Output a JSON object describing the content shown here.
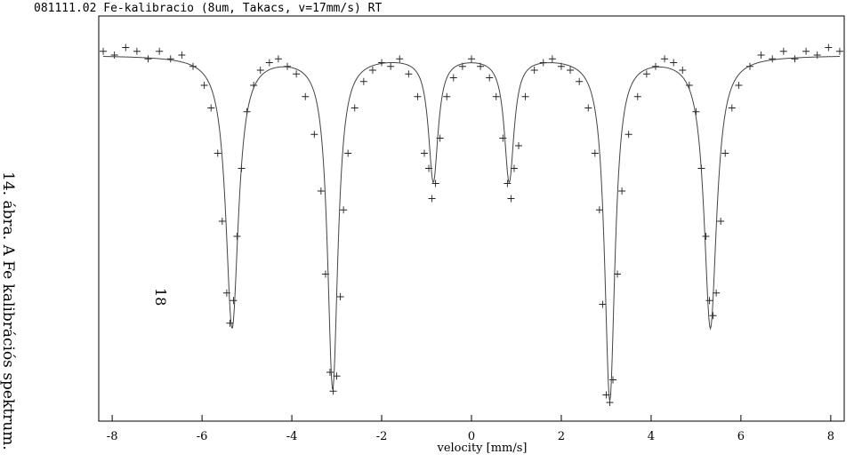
{
  "page": {
    "header": "081111.02  Fe-kalibracio (8um, Takacs, v=17mm/s)  RT",
    "caption": "14. ábra. A Fe kalibrációs spektrum.",
    "page_number": "18"
  },
  "chart_data": {
    "type": "scatter",
    "title": "081111.02  Fe-kalibracio (8um, Takacs, v=17mm/s)  RT",
    "xlabel": "velocity  [mm/s]",
    "ylabel": "",
    "xlim": [
      -8.3,
      8.3
    ],
    "ylim": [
      0.0,
      1.0
    ],
    "x_ticks": [
      -8,
      -6,
      -4,
      -2,
      0,
      2,
      4,
      6,
      8
    ],
    "x_tick_labels": [
      "-8",
      "-6",
      "-4",
      "-2",
      "0",
      "2",
      "4",
      "6",
      "8"
    ],
    "y_ticks_visible": false,
    "grid": false,
    "legend": "none",
    "series": [
      {
        "kind": "points",
        "marker": "+",
        "x": [
          -8.2,
          -7.95,
          -7.7,
          -7.45,
          -7.2,
          -6.95,
          -6.7,
          -6.45,
          -6.2,
          -5.95,
          -5.8,
          -5.65,
          -5.55,
          -5.45,
          -5.38,
          -5.3,
          -5.22,
          -5.12,
          -5.0,
          -4.85,
          -4.7,
          -4.5,
          -4.3,
          -4.1,
          -3.9,
          -3.7,
          -3.5,
          -3.35,
          -3.25,
          -3.15,
          -3.08,
          -3.0,
          -2.92,
          -2.85,
          -2.75,
          -2.6,
          -2.4,
          -2.2,
          -2.0,
          -1.8,
          -1.6,
          -1.4,
          -1.2,
          -1.05,
          -0.95,
          -0.88,
          -0.8,
          -0.7,
          -0.55,
          -0.4,
          -0.2,
          0.0,
          0.2,
          0.4,
          0.55,
          0.7,
          0.8,
          0.88,
          0.95,
          1.05,
          1.2,
          1.4,
          1.6,
          1.8,
          2.0,
          2.2,
          2.4,
          2.6,
          2.75,
          2.85,
          2.92,
          3.0,
          3.08,
          3.15,
          3.25,
          3.35,
          3.5,
          3.7,
          3.9,
          4.1,
          4.3,
          4.5,
          4.7,
          4.85,
          5.0,
          5.12,
          5.22,
          5.3,
          5.38,
          5.45,
          5.55,
          5.65,
          5.8,
          5.95,
          6.2,
          6.45,
          6.7,
          6.95,
          7.2,
          7.45,
          7.7,
          7.95,
          8.2
        ],
        "y": [
          0.97,
          0.96,
          0.98,
          0.97,
          0.95,
          0.97,
          0.95,
          0.96,
          0.93,
          0.88,
          0.82,
          0.7,
          0.52,
          0.33,
          0.25,
          0.31,
          0.48,
          0.66,
          0.81,
          0.88,
          0.92,
          0.94,
          0.95,
          0.93,
          0.91,
          0.85,
          0.75,
          0.6,
          0.38,
          0.12,
          0.07,
          0.11,
          0.32,
          0.55,
          0.7,
          0.82,
          0.89,
          0.92,
          0.94,
          0.93,
          0.95,
          0.91,
          0.85,
          0.7,
          0.66,
          0.58,
          0.62,
          0.74,
          0.85,
          0.9,
          0.93,
          0.95,
          0.93,
          0.9,
          0.85,
          0.74,
          0.62,
          0.58,
          0.66,
          0.72,
          0.85,
          0.92,
          0.94,
          0.95,
          0.93,
          0.92,
          0.89,
          0.82,
          0.7,
          0.55,
          0.3,
          0.06,
          0.04,
          0.1,
          0.38,
          0.6,
          0.75,
          0.85,
          0.91,
          0.93,
          0.95,
          0.94,
          0.92,
          0.88,
          0.81,
          0.66,
          0.48,
          0.31,
          0.27,
          0.33,
          0.52,
          0.7,
          0.82,
          0.88,
          0.93,
          0.96,
          0.95,
          0.97,
          0.95,
          0.97,
          0.96,
          0.98,
          0.97
        ]
      },
      {
        "kind": "fit-line",
        "baseline": 0.96,
        "lines": [
          {
            "center": -5.33,
            "depth": 0.72,
            "width": 0.17
          },
          {
            "center": -3.09,
            "depth": 0.88,
            "width": 0.14
          },
          {
            "center": -0.85,
            "depth": 0.33,
            "width": 0.13
          },
          {
            "center": 0.84,
            "depth": 0.33,
            "width": 0.13
          },
          {
            "center": 3.08,
            "depth": 0.91,
            "width": 0.14
          },
          {
            "center": 5.32,
            "depth": 0.72,
            "width": 0.17
          }
        ]
      }
    ]
  }
}
